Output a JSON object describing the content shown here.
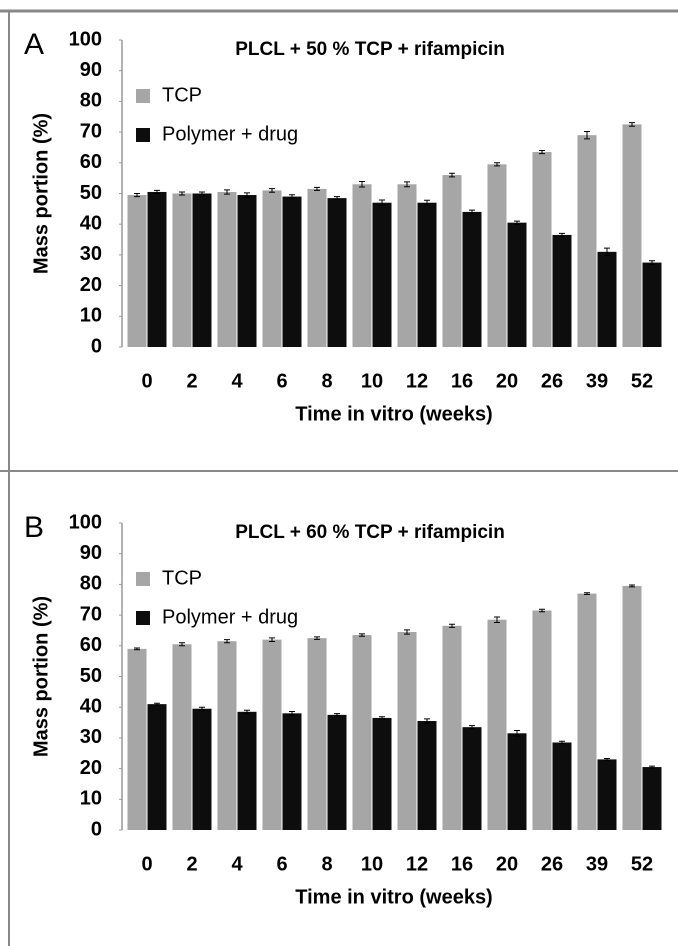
{
  "chart_data": [
    {
      "type": "bar",
      "panel_label": "A",
      "title": "PLCL + 50 % TCP + rifampicin",
      "x_label": "Time in vitro (weeks)",
      "y_label": "Mass portion (%)",
      "categories": [
        "0",
        "2",
        "4",
        "6",
        "8",
        "10",
        "12",
        "16",
        "20",
        "26",
        "39",
        "52"
      ],
      "series": [
        {
          "name": "TCP",
          "color": "#a6a6a6",
          "values": [
            49.5,
            50,
            50.5,
            51,
            51.5,
            53,
            53,
            56,
            59.5,
            63.5,
            69,
            72.5
          ],
          "errors": [
            0.5,
            0.5,
            0.7,
            0.6,
            0.5,
            0.9,
            0.8,
            0.6,
            0.5,
            0.5,
            1.2,
            0.6
          ]
        },
        {
          "name": "Polymer + drug",
          "color": "#0d0d0d",
          "values": [
            50.5,
            50,
            49.5,
            49,
            48.5,
            47,
            47,
            44,
            40.5,
            36.5,
            31,
            27.5
          ],
          "errors": [
            0.5,
            0.5,
            0.7,
            0.6,
            0.5,
            0.9,
            0.8,
            0.6,
            0.5,
            0.5,
            1.2,
            0.6
          ]
        }
      ],
      "ylim": [
        0,
        100
      ],
      "yticks": [
        0,
        10,
        20,
        30,
        40,
        50,
        60,
        70,
        80,
        90,
        100
      ],
      "legend": "upper left",
      "grid": false
    },
    {
      "type": "bar",
      "panel_label": "B",
      "title": "PLCL + 60 % TCP + rifampicin",
      "x_label": "Time in vitro (weeks)",
      "y_label": "Mass portion (%)",
      "categories": [
        "0",
        "2",
        "4",
        "6",
        "8",
        "10",
        "12",
        "16",
        "20",
        "26",
        "39",
        "52"
      ],
      "series": [
        {
          "name": "TCP",
          "color": "#a6a6a6",
          "values": [
            59,
            60.5,
            61.5,
            62,
            62.5,
            63.5,
            64.5,
            66.5,
            68.5,
            71.5,
            77,
            79.5
          ],
          "errors": [
            0.3,
            0.5,
            0.5,
            0.6,
            0.4,
            0.4,
            0.7,
            0.5,
            0.9,
            0.4,
            0.3,
            0.3
          ]
        },
        {
          "name": "Polymer + drug",
          "color": "#0d0d0d",
          "values": [
            41,
            39.5,
            38.5,
            38,
            37.5,
            36.5,
            35.5,
            33.5,
            31.5,
            28.5,
            23,
            20.5
          ],
          "errors": [
            0.3,
            0.5,
            0.5,
            0.6,
            0.4,
            0.4,
            0.7,
            0.5,
            0.9,
            0.4,
            0.3,
            0.3
          ]
        }
      ],
      "ylim": [
        0,
        100
      ],
      "yticks": [
        0,
        10,
        20,
        30,
        40,
        50,
        60,
        70,
        80,
        90,
        100
      ],
      "legend": "upper left",
      "grid": false
    }
  ]
}
